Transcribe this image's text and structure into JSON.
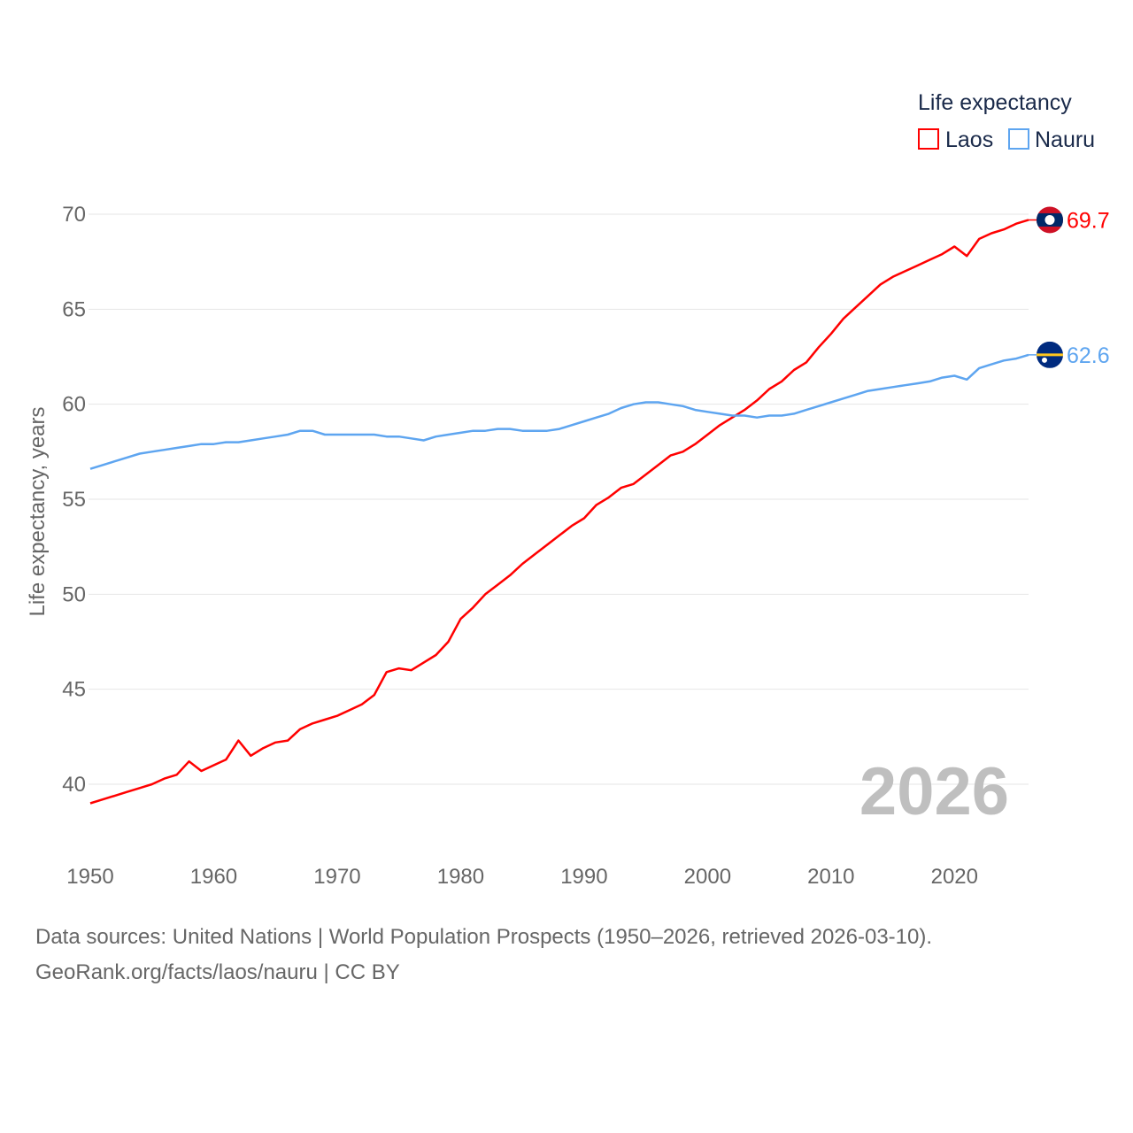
{
  "chart_data": {
    "type": "line",
    "title": "",
    "ylabel": "Life expectancy, years",
    "xlabel": "",
    "xlim": [
      1950,
      2026
    ],
    "ylim": [
      40,
      70
    ],
    "xticks": [
      1950,
      1960,
      1970,
      1980,
      1990,
      2000,
      2010,
      2020
    ],
    "yticks": [
      40,
      45,
      50,
      55,
      60,
      65,
      70
    ],
    "grid": true,
    "legend": {
      "title": "Life expectancy",
      "placement": "top-right"
    },
    "year_label": "2026",
    "x_start": 1950,
    "series": [
      {
        "name": "Laos",
        "color": "#ff0000",
        "end_label": "69.7",
        "flag": "laos-flag",
        "values": [
          39.0,
          39.2,
          39.4,
          39.6,
          39.8,
          40.0,
          40.3,
          40.5,
          41.2,
          40.7,
          41.0,
          41.3,
          42.3,
          41.5,
          41.9,
          42.2,
          42.3,
          42.9,
          43.2,
          43.4,
          43.6,
          43.9,
          44.2,
          44.7,
          45.9,
          46.1,
          46.0,
          46.4,
          46.8,
          47.5,
          48.7,
          49.3,
          50.0,
          50.5,
          51.0,
          51.6,
          52.1,
          52.6,
          53.1,
          53.6,
          54.0,
          54.7,
          55.1,
          55.6,
          55.8,
          56.3,
          56.8,
          57.3,
          57.5,
          57.9,
          58.4,
          58.9,
          59.3,
          59.7,
          60.2,
          60.8,
          61.2,
          61.8,
          62.2,
          63.0,
          63.7,
          64.5,
          65.1,
          65.7,
          66.3,
          66.7,
          67.0,
          67.3,
          67.6,
          67.9,
          68.3,
          67.8,
          68.7,
          69.0,
          69.2,
          69.5,
          69.7
        ]
      },
      {
        "name": "Nauru",
        "color": "#5ea5f0",
        "end_label": "62.6",
        "flag": "nauru-flag",
        "values": [
          56.6,
          56.8,
          57.0,
          57.2,
          57.4,
          57.5,
          57.6,
          57.7,
          57.8,
          57.9,
          57.9,
          58.0,
          58.0,
          58.1,
          58.2,
          58.3,
          58.4,
          58.6,
          58.6,
          58.4,
          58.4,
          58.4,
          58.4,
          58.4,
          58.3,
          58.3,
          58.2,
          58.1,
          58.3,
          58.4,
          58.5,
          58.6,
          58.6,
          58.7,
          58.7,
          58.6,
          58.6,
          58.6,
          58.7,
          58.9,
          59.1,
          59.3,
          59.5,
          59.8,
          60.0,
          60.1,
          60.1,
          60.0,
          59.9,
          59.7,
          59.6,
          59.5,
          59.4,
          59.4,
          59.3,
          59.4,
          59.4,
          59.5,
          59.7,
          59.9,
          60.1,
          60.3,
          60.5,
          60.7,
          60.8,
          60.9,
          61.0,
          61.1,
          61.2,
          61.4,
          61.5,
          61.3,
          61.9,
          62.1,
          62.3,
          62.4,
          62.6
        ]
      }
    ]
  },
  "footer": {
    "line1": "Data sources: United Nations | World Population Prospects (1950–2026, retrieved 2026-03-10).",
    "line2": "GeoRank.org/facts/laos/nauru | CC BY"
  }
}
